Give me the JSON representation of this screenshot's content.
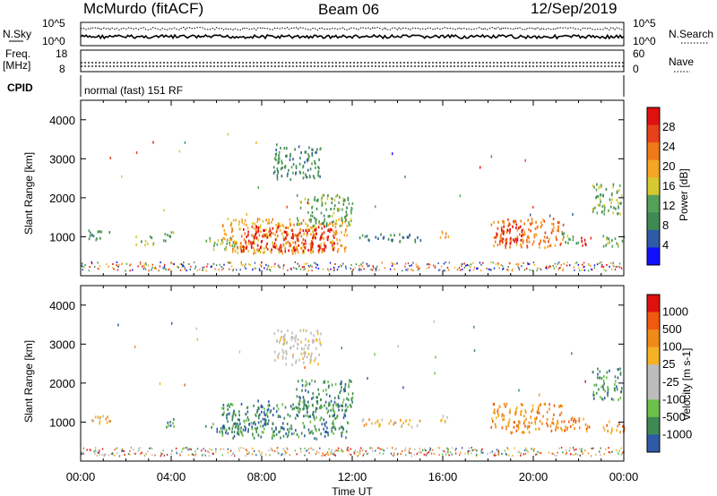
{
  "header": {
    "station": "McMurdo (fitACF)",
    "beam": "Beam 06",
    "date": "12/Sep/2019"
  },
  "status_panels": {
    "nsky_label": "N.Sky",
    "nsearch_label": "N.Search",
    "noise_ticks_left": [
      "10^5",
      "10^0"
    ],
    "noise_ticks_right": [
      "10^5",
      "10^0"
    ],
    "freq_label_1": "Freq.",
    "freq_label_2": "[MHz]",
    "freq_ticks": [
      "18",
      "8"
    ],
    "nave_label": "Nave",
    "nave_ticks": [
      "60",
      "0"
    ],
    "cpid_label": "CPID",
    "cpid_text": "normal (fast) 151 RF"
  },
  "colors": {
    "power_scale": [
      "#1010ff",
      "#2e5aa6",
      "#3d8a55",
      "#55a058",
      "#d6c830",
      "#f5a623",
      "#f07a18",
      "#e8401a",
      "#e01010"
    ],
    "velocity_scale": [
      "#e01010",
      "#f05a10",
      "#f08a18",
      "#f5b224",
      "#bdbdbd",
      "#bdbdbd",
      "#6cc04a",
      "#3d8a55",
      "#2e5aa6"
    ],
    "velocity_main": "#3d8a5a",
    "velocity_west": "#f08a18"
  },
  "chart_data": [
    {
      "type": "heatmap",
      "name": "power",
      "x_unit": "hours UT",
      "xlim": [
        0,
        24
      ],
      "ylim": [
        0,
        4500
      ],
      "ylabel": "Slant Range [km]",
      "xlabel": "Time UT",
      "y_ticks": [
        1000,
        2000,
        3000,
        4000
      ],
      "x_tick_labels": [
        "00:00",
        "04:00",
        "08:00",
        "12:00",
        "16:00",
        "20:00",
        "00:00"
      ],
      "colorbar_label": "Power [dB]",
      "colorbar_ticks": [
        "28",
        "24",
        "20",
        "16",
        "12",
        "8",
        "4"
      ],
      "regions": [
        {
          "t0": 0.3,
          "t1": 1.3,
          "r0": 950,
          "r1": 1200,
          "level": 2
        },
        {
          "t0": 2.4,
          "t1": 3.2,
          "r0": 820,
          "r1": 1050,
          "level": 3
        },
        {
          "t0": 3.6,
          "t1": 4.2,
          "r0": 900,
          "r1": 1150,
          "level": 3
        },
        {
          "t0": 5.5,
          "t1": 7.2,
          "r0": 700,
          "r1": 1000,
          "level": 3
        },
        {
          "t0": 6.2,
          "t1": 11.8,
          "r0": 600,
          "r1": 1500,
          "level": 5
        },
        {
          "t0": 7.0,
          "t1": 11.2,
          "r0": 650,
          "r1": 1300,
          "level": 8
        },
        {
          "t0": 9.5,
          "t1": 12.0,
          "r0": 1300,
          "r1": 2100,
          "level": 3
        },
        {
          "t0": 8.5,
          "t1": 10.6,
          "r0": 2500,
          "r1": 3400,
          "level": 2
        },
        {
          "t0": 12.3,
          "t1": 15.0,
          "r0": 900,
          "r1": 1100,
          "level": 2
        },
        {
          "t0": 15.8,
          "t1": 16.3,
          "r0": 1000,
          "r1": 1200,
          "level": 5
        },
        {
          "t0": 18.1,
          "t1": 21.3,
          "r0": 750,
          "r1": 1500,
          "level": 6
        },
        {
          "t0": 18.3,
          "t1": 19.5,
          "r0": 850,
          "r1": 1350,
          "level": 8
        },
        {
          "t0": 21.2,
          "t1": 22.0,
          "r0": 850,
          "r1": 1150,
          "level": 3
        },
        {
          "t0": 22.1,
          "t1": 22.6,
          "r0": 800,
          "r1": 1050,
          "level": 8
        },
        {
          "t0": 23.0,
          "t1": 24.0,
          "r0": 750,
          "r1": 1050,
          "level": 3
        },
        {
          "t0": 22.6,
          "t1": 23.9,
          "r0": 1600,
          "r1": 2400,
          "level": 3
        }
      ]
    },
    {
      "type": "heatmap",
      "name": "velocity",
      "x_unit": "hours UT",
      "xlim": [
        0,
        24
      ],
      "ylim": [
        0,
        4500
      ],
      "ylabel": "Slant Range [km]",
      "xlabel": "Time UT",
      "y_ticks": [
        1000,
        2000,
        3000,
        4000
      ],
      "x_tick_labels": [
        "00:00",
        "04:00",
        "08:00",
        "12:00",
        "16:00",
        "20:00",
        "00:00"
      ],
      "colorbar_label": "Velocity [m s-1]",
      "colorbar_ticks": [
        "1000",
        "500",
        "100",
        "25",
        "-25",
        "-100",
        "-500",
        "-1000"
      ],
      "regions": [
        {
          "t0": 0.3,
          "t1": 1.3,
          "r0": 950,
          "r1": 1200,
          "level": 3
        },
        {
          "t0": 3.6,
          "t1": 4.2,
          "r0": 900,
          "r1": 1150,
          "level": 7
        },
        {
          "t0": 5.5,
          "t1": 7.2,
          "r0": 700,
          "r1": 1000,
          "level": 7
        },
        {
          "t0": 6.2,
          "t1": 11.8,
          "r0": 600,
          "r1": 1500,
          "level": 7
        },
        {
          "t0": 7.8,
          "t1": 8.3,
          "r0": 900,
          "r1": 1600,
          "level": 8
        },
        {
          "t0": 9.5,
          "t1": 12.0,
          "r0": 1300,
          "r1": 2100,
          "level": 7
        },
        {
          "t0": 8.5,
          "t1": 10.6,
          "r0": 2500,
          "r1": 3400,
          "level": 4
        },
        {
          "t0": 12.3,
          "t1": 15.0,
          "r0": 900,
          "r1": 1100,
          "level": 3
        },
        {
          "t0": 15.8,
          "t1": 16.3,
          "r0": 1000,
          "r1": 1200,
          "level": 3
        },
        {
          "t0": 18.1,
          "t1": 21.3,
          "r0": 750,
          "r1": 1500,
          "level": 2
        },
        {
          "t0": 21.2,
          "t1": 22.6,
          "r0": 800,
          "r1": 1150,
          "level": 2
        },
        {
          "t0": 23.0,
          "t1": 24.0,
          "r0": 750,
          "r1": 1050,
          "level": 2
        },
        {
          "t0": 22.6,
          "t1": 23.9,
          "r0": 1600,
          "r1": 2400,
          "level": 7
        }
      ]
    }
  ]
}
